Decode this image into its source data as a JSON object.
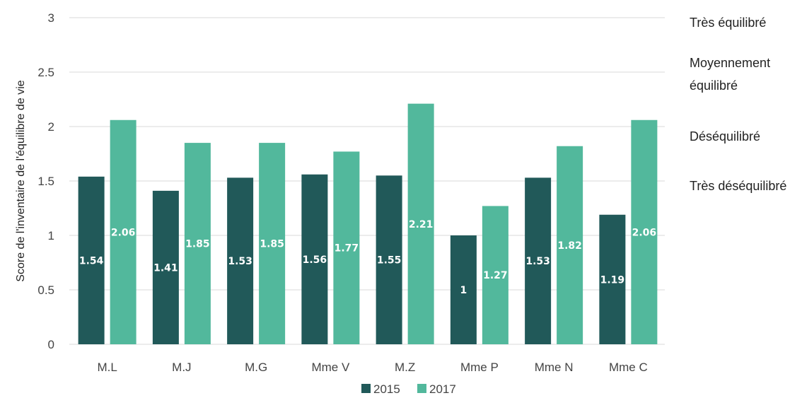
{
  "chart_data": {
    "type": "bar",
    "title": "",
    "xlabel": "",
    "ylabel": "Score de l'inventaire de l'équilibre de vie",
    "ylim": [
      0,
      3
    ],
    "yticks": [
      "0",
      "0.5",
      "1",
      "1.5",
      "2",
      "2.5",
      "3"
    ],
    "ytick_values": [
      0,
      0.5,
      1,
      1.5,
      2,
      2.5,
      3
    ],
    "categories": [
      "M.L",
      "M.J",
      "M.G",
      "Mme V",
      "M.Z",
      "Mme P",
      "Mme N",
      "Mme C"
    ],
    "series": [
      {
        "name": "2015",
        "color": "#215959",
        "values": [
          1.54,
          1.41,
          1.53,
          1.56,
          1.55,
          1,
          1.53,
          1.19
        ],
        "labels": [
          "1.54",
          "1.41",
          "1.53",
          "1.56",
          "1.55",
          "1",
          "1.53",
          "1.19"
        ]
      },
      {
        "name": "2017",
        "color": "#52b89c",
        "values": [
          2.06,
          1.85,
          1.85,
          1.77,
          2.21,
          1.27,
          1.82,
          2.06
        ],
        "labels": [
          "2.06",
          "1.85",
          "1.85",
          "1.77",
          "2.21",
          "1.27",
          "1.82",
          "2.06"
        ]
      }
    ],
    "grid": true,
    "legend_position": "bottom",
    "right_annotations": [
      {
        "lines": [
          "Très équilibré"
        ],
        "y": 3
      },
      {
        "lines": [
          "Moyennement",
          "équilibré"
        ],
        "y": 2.5
      },
      {
        "lines": [
          "Déséquilibré"
        ],
        "y": 2
      },
      {
        "lines": [
          "Très déséquilibré"
        ],
        "y": 1.5
      }
    ]
  }
}
